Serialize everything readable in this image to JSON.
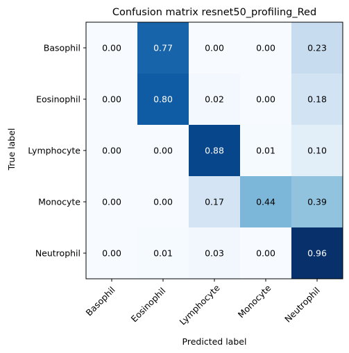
{
  "chart_data": {
    "type": "heatmap",
    "title": "Confusion matrix resnet50_profiling_Red",
    "xlabel": "Predicted label",
    "ylabel": "True label",
    "x_categories": [
      "Basophil",
      "Eosinophil",
      "Lymphocyte",
      "Monocyte",
      "Neutrophil"
    ],
    "y_categories": [
      "Basophil",
      "Eosinophil",
      "Lymphocyte",
      "Monocyte",
      "Neutrophil"
    ],
    "values": [
      [
        0.0,
        0.77,
        0.0,
        0.0,
        0.23
      ],
      [
        0.0,
        0.8,
        0.02,
        0.0,
        0.18
      ],
      [
        0.0,
        0.0,
        0.88,
        0.01,
        0.1
      ],
      [
        0.0,
        0.0,
        0.17,
        0.44,
        0.39
      ],
      [
        0.0,
        0.01,
        0.03,
        0.0,
        0.96
      ]
    ],
    "value_format": "0.00",
    "colormap": "Blues",
    "colormap_stops": [
      "#f7fbff",
      "#deebf7",
      "#c6dbef",
      "#9ecae1",
      "#6baed6",
      "#4292c6",
      "#2171b5",
      "#08519c",
      "#08306b"
    ],
    "value_range": [
      0,
      0.96
    ],
    "text_colors": {
      "light": "#ffffff",
      "dark": "#000000"
    },
    "colorbar": false,
    "grid": false,
    "tick_rotation_deg": 45
  }
}
